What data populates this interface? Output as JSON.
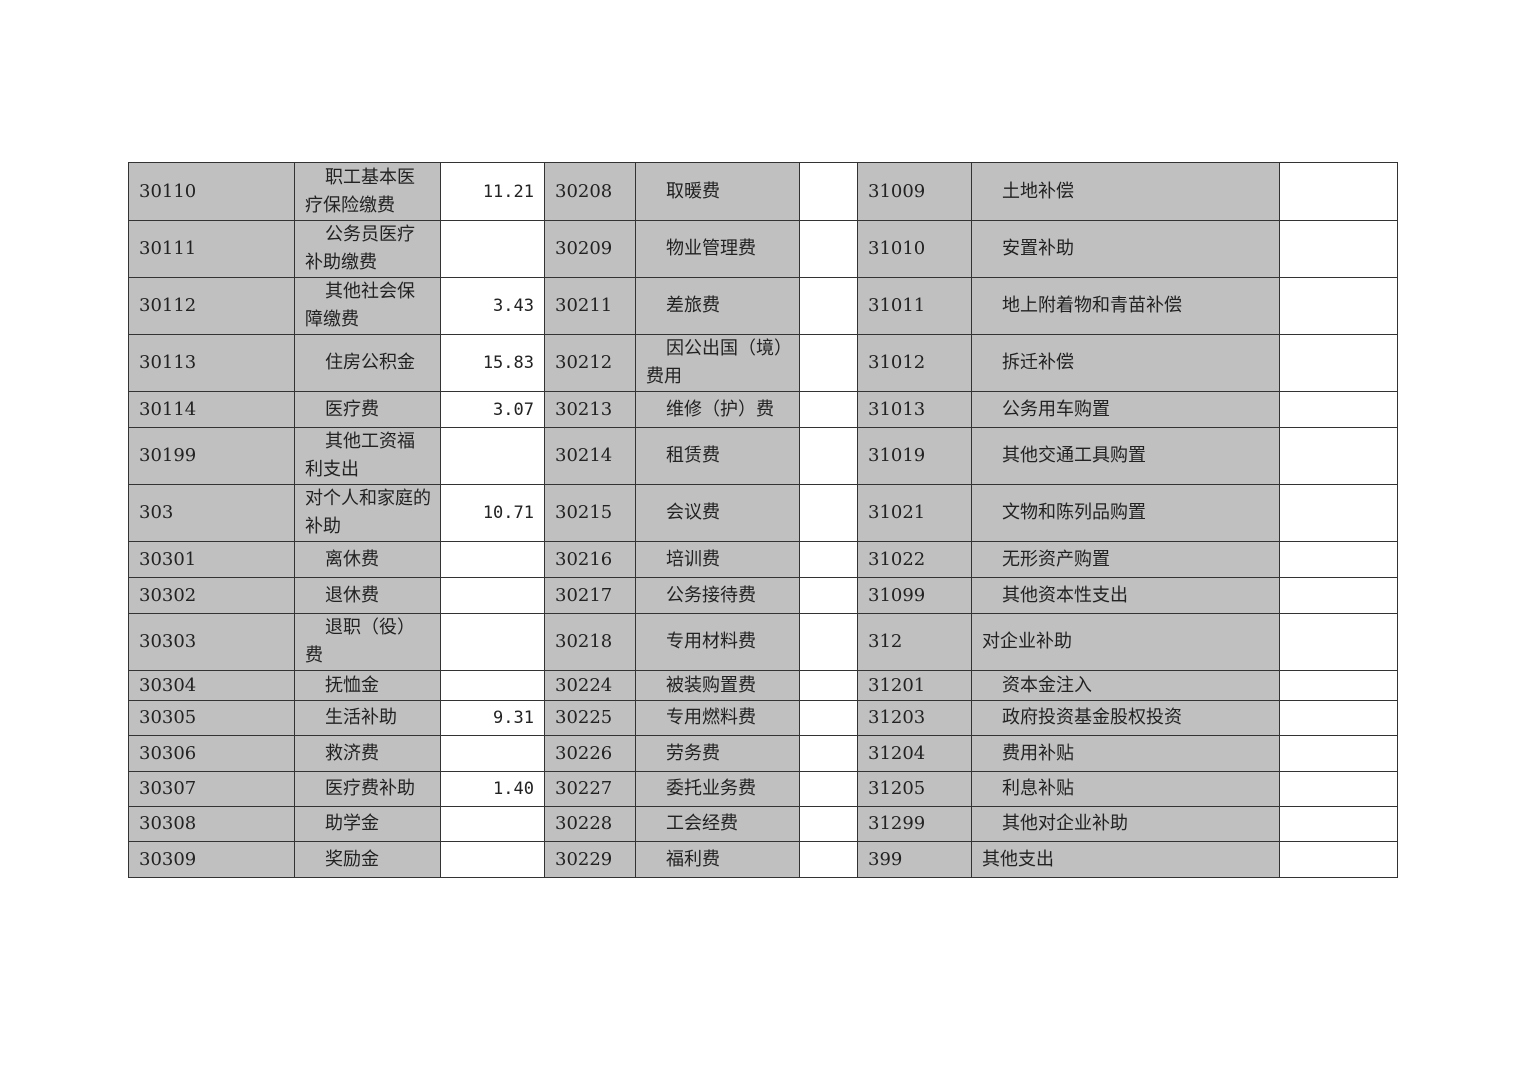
{
  "table": {
    "rows": [
      [
        [
          "30110",
          "职工基本医疗保险缴费",
          "11.21",
          true
        ],
        [
          "30208",
          "取暖费",
          "",
          true
        ],
        [
          "31009",
          "土地补偿",
          "",
          true
        ]
      ],
      [
        [
          "30111",
          "公务员医疗补助缴费",
          "",
          true
        ],
        [
          "30209",
          "物业管理费",
          "",
          true
        ],
        [
          "31010",
          "安置补助",
          "",
          true
        ]
      ],
      [
        [
          "30112",
          "其他社会保障缴费",
          "3.43",
          true
        ],
        [
          "30211",
          "差旅费",
          "",
          true
        ],
        [
          "31011",
          "地上附着物和青苗补偿",
          "",
          true
        ]
      ],
      [
        [
          "30113",
          "住房公积金",
          "15.83",
          true
        ],
        [
          "30212",
          "因公出国（境）费用",
          "",
          true
        ],
        [
          "31012",
          "拆迁补偿",
          "",
          true
        ]
      ],
      [
        [
          "30114",
          "医疗费",
          "3.07",
          true
        ],
        [
          "30213",
          "维修（护）费",
          "",
          true
        ],
        [
          "31013",
          "公务用车购置",
          "",
          true
        ]
      ],
      [
        [
          "30199",
          "其他工资福利支出",
          "",
          true
        ],
        [
          "30214",
          "租赁费",
          "",
          true
        ],
        [
          "31019",
          "其他交通工具购置",
          "",
          true
        ]
      ],
      [
        [
          "303",
          "对个人和家庭的补助",
          "10.71",
          false
        ],
        [
          "30215",
          "会议费",
          "",
          true
        ],
        [
          "31021",
          "文物和陈列品购置",
          "",
          true
        ]
      ],
      [
        [
          "30301",
          "离休费",
          "",
          true
        ],
        [
          "30216",
          "培训费",
          "",
          true
        ],
        [
          "31022",
          "无形资产购置",
          "",
          true
        ]
      ],
      [
        [
          "30302",
          "退休费",
          "",
          true
        ],
        [
          "30217",
          "公务接待费",
          "",
          true
        ],
        [
          "31099",
          "其他资本性支出",
          "",
          true
        ]
      ],
      [
        [
          "30303",
          "退职（役）费",
          "",
          true
        ],
        [
          "30218",
          "专用材料费",
          "",
          true
        ],
        [
          "312",
          "对企业补助",
          "",
          false
        ]
      ],
      [
        [
          "30304",
          "抚恤金",
          "",
          true
        ],
        [
          "30224",
          "被装购置费",
          "",
          true
        ],
        [
          "31201",
          "资本金注入",
          "",
          true
        ]
      ],
      [
        [
          "30305",
          "生活补助",
          "9.31",
          true
        ],
        [
          "30225",
          "专用燃料费",
          "",
          true
        ],
        [
          "31203",
          "政府投资基金股权投资",
          "",
          true
        ]
      ],
      [
        [
          "30306",
          "救济费",
          "",
          true
        ],
        [
          "30226",
          "劳务费",
          "",
          true
        ],
        [
          "31204",
          "费用补贴",
          "",
          true
        ]
      ],
      [
        [
          "30307",
          "医疗费补助",
          "1.40",
          true
        ],
        [
          "30227",
          "委托业务费",
          "",
          true
        ],
        [
          "31205",
          "利息补贴",
          "",
          true
        ]
      ],
      [
        [
          "30308",
          "助学金",
          "",
          true
        ],
        [
          "30228",
          "工会经费",
          "",
          true
        ],
        [
          "31299",
          "其他对企业补助",
          "",
          true
        ]
      ],
      [
        [
          "30309",
          "奖励金",
          "",
          true
        ],
        [
          "30229",
          "福利费",
          "",
          true
        ],
        [
          "399",
          "其他支出",
          "",
          false
        ]
      ]
    ],
    "colors": {
      "shaded_cell": "#c0c0c0",
      "value_cell": "#ffffff",
      "border": "#333333"
    }
  }
}
